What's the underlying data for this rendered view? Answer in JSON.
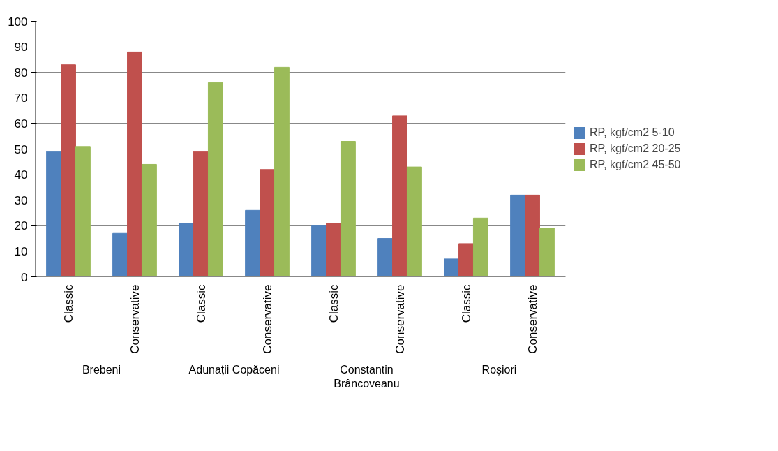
{
  "chart_data": {
    "type": "bar",
    "categories": [
      "Classic",
      "Conservative",
      "Classic",
      "Conservative",
      "Classic",
      "Conservative",
      "Classic",
      "Conservative"
    ],
    "series": [
      {
        "name": "RP, kgf/cm2 5-10",
        "color": "#4f81bd",
        "values": [
          49,
          17,
          21,
          26,
          20,
          15,
          7,
          32
        ]
      },
      {
        "name": "RP, kgf/cm2 20-25",
        "color": "#c0504d",
        "values": [
          83,
          88,
          49,
          42,
          21,
          63,
          13,
          32
        ]
      },
      {
        "name": "RP, kgf/cm2 45-50",
        "color": "#9bbb59",
        "values": [
          51,
          44,
          76,
          82,
          53,
          43,
          23,
          19
        ]
      }
    ],
    "annotations": [
      "Brebeni",
      "Adunații Copăceni",
      "Constantin\nBrâncoveanu",
      "Roșiori"
    ],
    "ylim": [
      0,
      100
    ],
    "yticks": [
      0,
      10,
      20,
      30,
      40,
      50,
      60,
      70,
      80,
      90,
      100
    ],
    "grid": "y",
    "legend": "right"
  }
}
